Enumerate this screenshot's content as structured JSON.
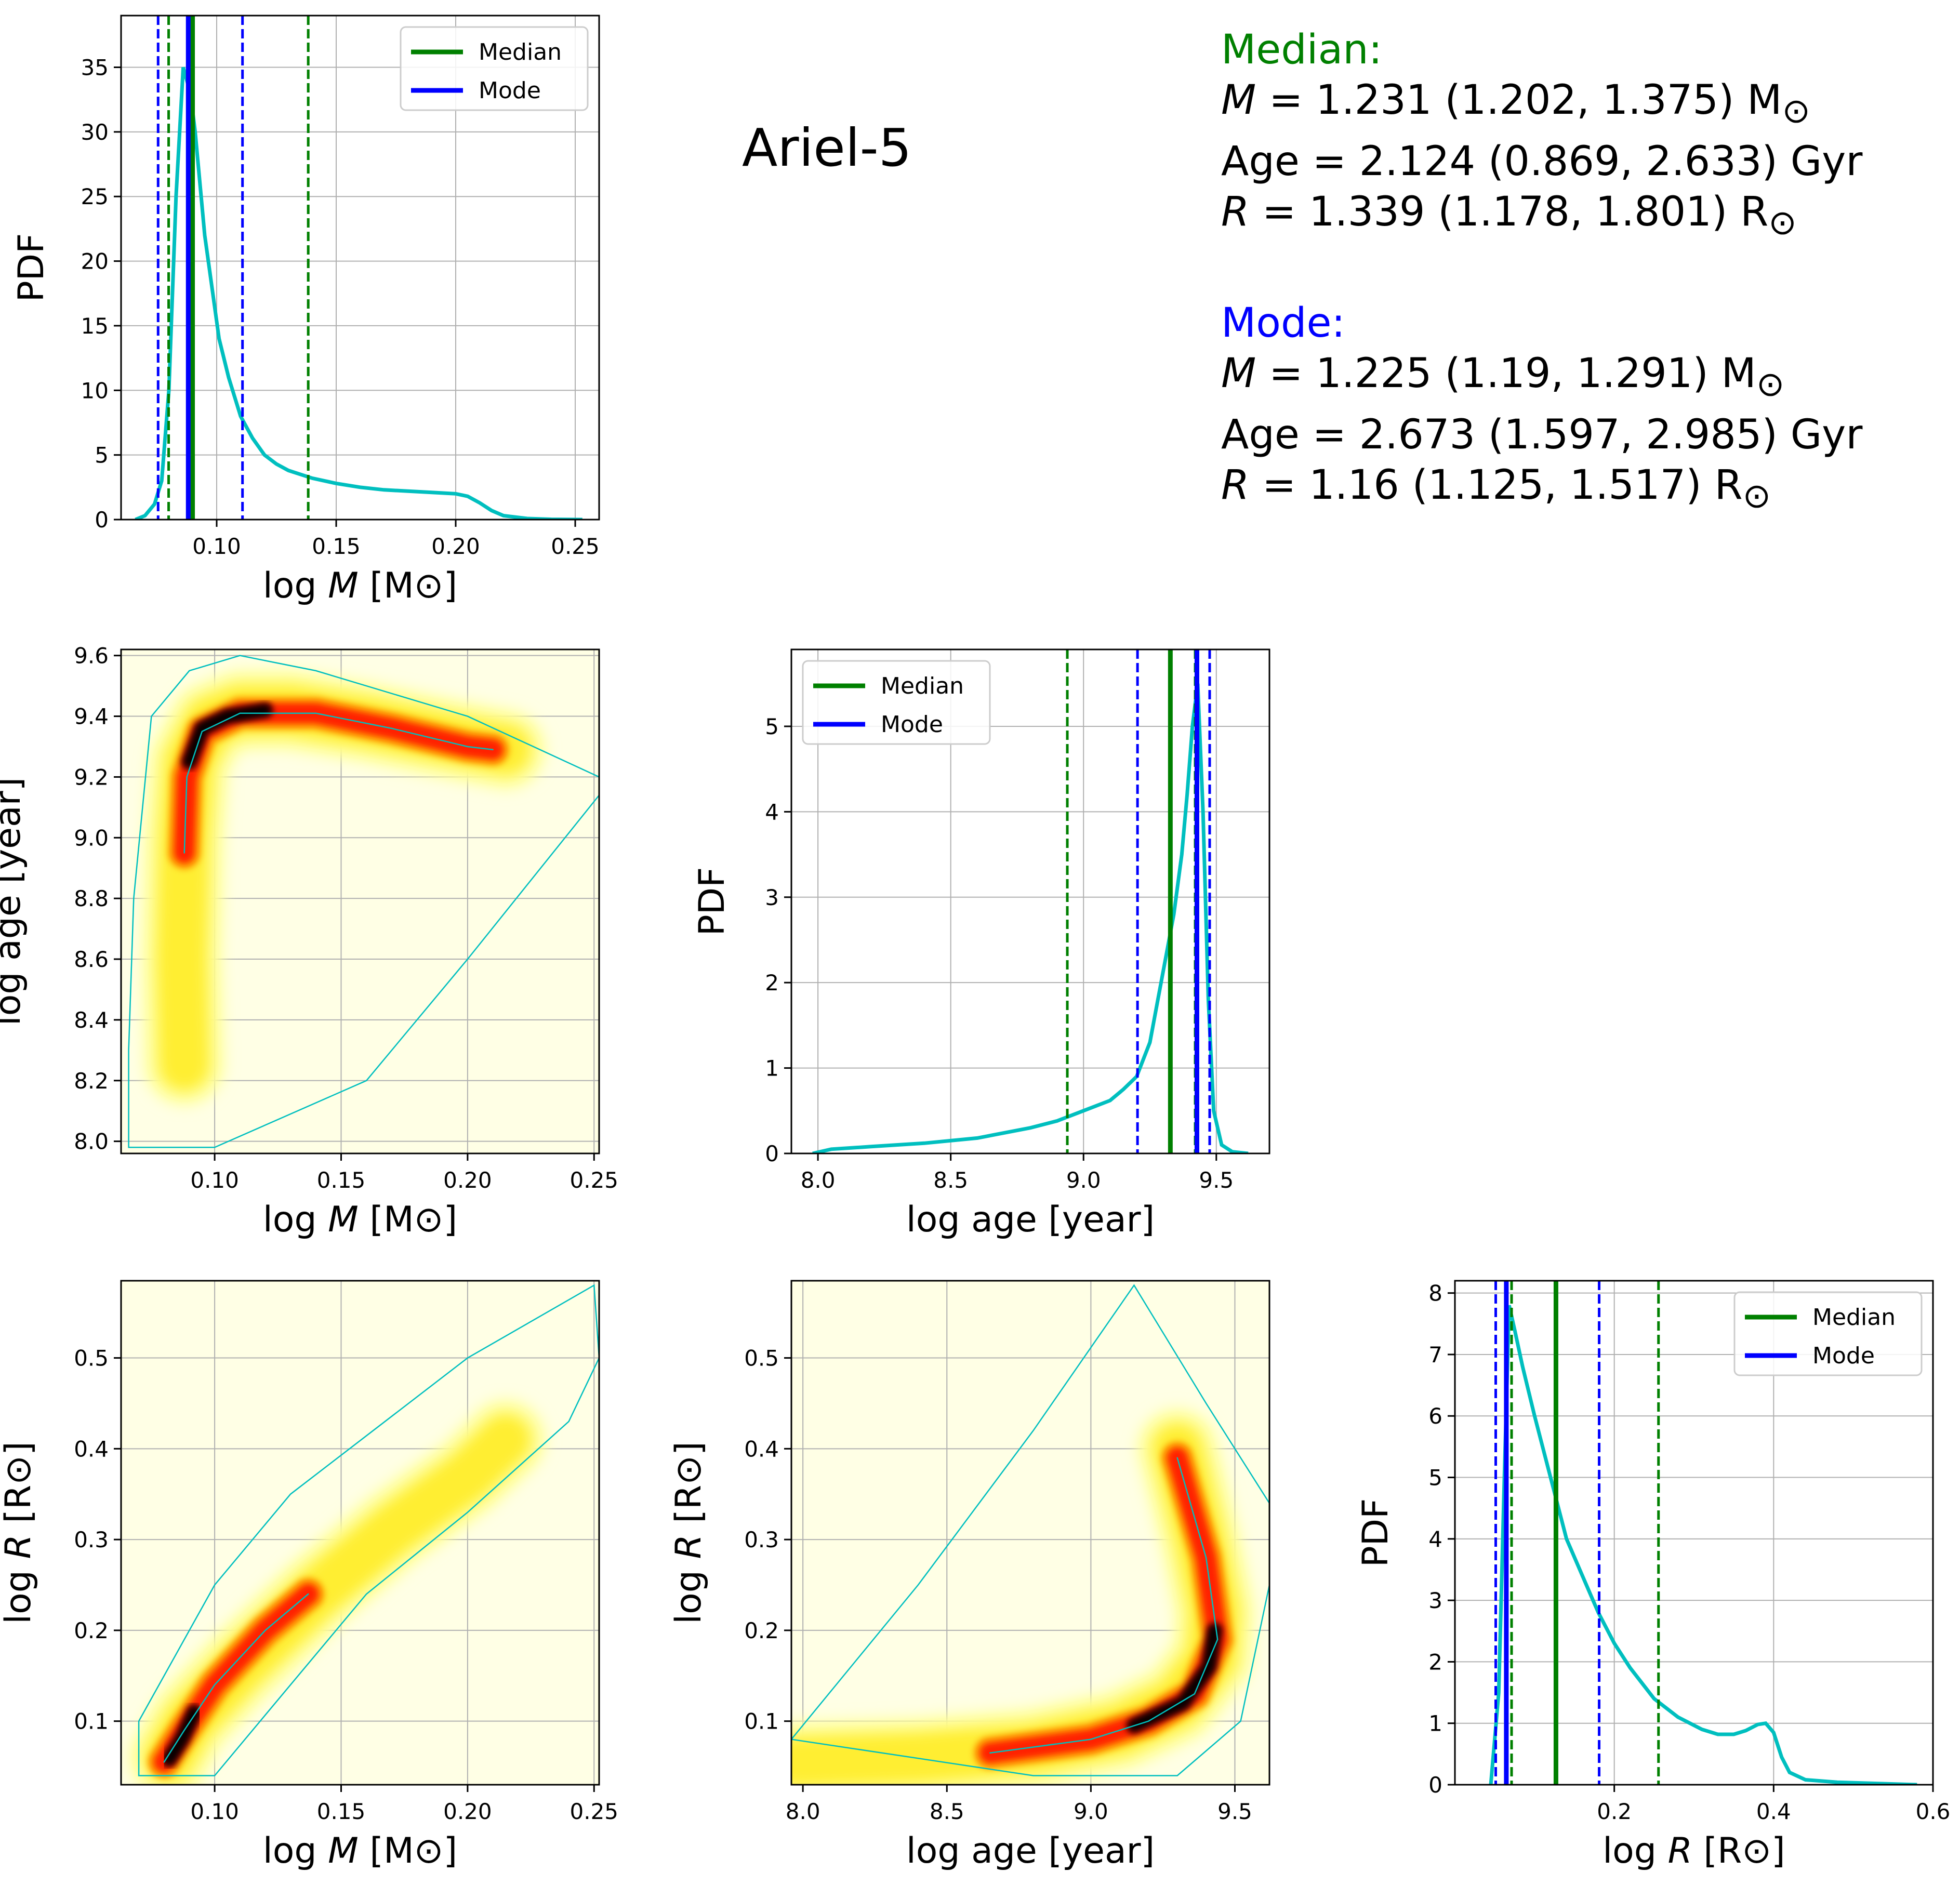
{
  "title": "Ariel-5",
  "summary": {
    "median": {
      "heading": "Median:",
      "color": "#008000",
      "mass": {
        "label": "M",
        "text": " = 1.231 (1.202, 1.375) M",
        "unit": "⊙"
      },
      "age": {
        "text": "Age = 2.124 (0.869, 2.633) Gyr"
      },
      "radius": {
        "label": "R",
        "text": " = 1.339 (1.178, 1.801) R",
        "unit": "⊙"
      }
    },
    "mode": {
      "heading": "Mode:",
      "color": "#0000ff",
      "mass": {
        "label": "M",
        "text": " = 1.225 (1.19, 1.291) M",
        "unit": "⊙"
      },
      "age": {
        "text": "Age = 2.673 (1.597, 2.985) Gyr"
      },
      "radius": {
        "label": "R",
        "text": " = 1.16 (1.125, 1.517) R",
        "unit": "⊙"
      }
    }
  },
  "colors": {
    "pdf_curve": "#00bfbf",
    "median": "#008000",
    "mode": "#0000ff",
    "grid": "#b0b0b0",
    "heat_background": "#ffffe5",
    "contour": "#00bfbf"
  },
  "chart_data": [
    {
      "id": "mass_pdf",
      "type": "line",
      "xlabel": "log M [M⊙]",
      "ylabel": "PDF",
      "xlim": [
        0.06,
        0.26
      ],
      "ylim": [
        0,
        39
      ],
      "xticks": [
        0.1,
        0.15,
        0.2,
        0.25
      ],
      "xtick_labels": [
        "0.10",
        "0.15",
        "0.20",
        "0.25"
      ],
      "yticks": [
        0,
        5,
        10,
        15,
        20,
        25,
        30,
        35
      ],
      "ytick_labels": [
        "0",
        "5",
        "10",
        "15",
        "20",
        "25",
        "30",
        "35"
      ],
      "grid": true,
      "legend": {
        "position": "top-right",
        "entries": [
          "Median",
          "Mode"
        ]
      },
      "series": [
        {
          "x": [
            0.066,
            0.07,
            0.074,
            0.077,
            0.08,
            0.083,
            0.086,
            0.089,
            0.091,
            0.093,
            0.095,
            0.098,
            0.101,
            0.105,
            0.11,
            0.115,
            0.12,
            0.125,
            0.13,
            0.14,
            0.15,
            0.16,
            0.17,
            0.18,
            0.19,
            0.2,
            0.205,
            0.21,
            0.215,
            0.22,
            0.23,
            0.24,
            0.253
          ],
          "y": [
            0,
            0.3,
            1.2,
            3,
            10,
            25,
            35,
            33,
            30,
            26,
            22,
            18,
            14,
            11,
            8,
            6.3,
            5,
            4.3,
            3.8,
            3.2,
            2.8,
            2.5,
            2.3,
            2.2,
            2.1,
            2.0,
            1.8,
            1.3,
            0.7,
            0.3,
            0.08,
            0.02,
            0
          ]
        }
      ],
      "median_lines": {
        "value": 0.0899,
        "ci": [
          0.0799,
          0.1383
        ]
      },
      "mode_lines": {
        "value": 0.0881,
        "ci": [
          0.0755,
          0.1108
        ]
      }
    },
    {
      "id": "mass_age_2d",
      "type": "heatmap",
      "xlabel": "log M [M⊙]",
      "ylabel": "log age [year]",
      "xlim": [
        0.063,
        0.252
      ],
      "ylim": [
        7.96,
        9.62
      ],
      "xticks": [
        0.1,
        0.15,
        0.2,
        0.25
      ],
      "xtick_labels": [
        "0.10",
        "0.15",
        "0.20",
        "0.25"
      ],
      "yticks": [
        8.0,
        8.2,
        8.4,
        8.6,
        8.8,
        9.0,
        9.2,
        9.4,
        9.6
      ],
      "ytick_labels": [
        "8.0",
        "8.2",
        "8.4",
        "8.6",
        "8.8",
        "9.0",
        "9.2",
        "9.4",
        "9.6"
      ],
      "grid": true
    },
    {
      "id": "age_pdf",
      "type": "line",
      "xlabel": "log age [year]",
      "ylabel": "PDF",
      "xlim": [
        7.9,
        9.7
      ],
      "ylim": [
        0,
        5.9
      ],
      "xticks": [
        8.0,
        8.5,
        9.0,
        9.5
      ],
      "xtick_labels": [
        "8.0",
        "8.5",
        "9.0",
        "9.5"
      ],
      "yticks": [
        0,
        1,
        2,
        3,
        4,
        5
      ],
      "ytick_labels": [
        "0",
        "1",
        "2",
        "3",
        "4",
        "5"
      ],
      "grid": true,
      "legend": {
        "position": "top-left",
        "entries": [
          "Median",
          "Mode"
        ]
      },
      "series": [
        {
          "x": [
            7.98,
            8.05,
            8.2,
            8.4,
            8.6,
            8.8,
            8.9,
            9.0,
            9.1,
            9.15,
            9.2,
            9.25,
            9.28,
            9.31,
            9.34,
            9.37,
            9.39,
            9.41,
            9.43,
            9.45,
            9.47,
            9.49,
            9.52,
            9.56,
            9.62
          ],
          "y": [
            0,
            0.05,
            0.08,
            0.12,
            0.18,
            0.3,
            0.38,
            0.5,
            0.62,
            0.75,
            0.9,
            1.3,
            1.8,
            2.3,
            2.8,
            3.5,
            4.2,
            5.0,
            5.5,
            4.0,
            1.8,
            0.5,
            0.1,
            0.02,
            0
          ]
        }
      ],
      "median_lines": {
        "value": 9.327,
        "ci": [
          8.939,
          9.4204
        ]
      },
      "mode_lines": {
        "value": 9.427,
        "ci": [
          9.2033,
          9.475
        ]
      }
    },
    {
      "id": "mass_radius_2d",
      "type": "heatmap",
      "xlabel": "log M [M⊙]",
      "ylabel": "log R [R⊙]",
      "xlim": [
        0.063,
        0.252
      ],
      "ylim": [
        0.03,
        0.585
      ],
      "xticks": [
        0.1,
        0.15,
        0.2,
        0.25
      ],
      "xtick_labels": [
        "0.10",
        "0.15",
        "0.20",
        "0.25"
      ],
      "yticks": [
        0.1,
        0.2,
        0.3,
        0.4,
        0.5
      ],
      "ytick_labels": [
        "0.1",
        "0.2",
        "0.3",
        "0.4",
        "0.5"
      ],
      "grid": true
    },
    {
      "id": "age_radius_2d",
      "type": "heatmap",
      "xlabel": "log age [year]",
      "ylabel": "log R [R⊙]",
      "xlim": [
        7.96,
        9.62
      ],
      "ylim": [
        0.03,
        0.585
      ],
      "xticks": [
        8.0,
        8.5,
        9.0,
        9.5
      ],
      "xtick_labels": [
        "8.0",
        "8.5",
        "9.0",
        "9.5"
      ],
      "yticks": [
        0.1,
        0.2,
        0.3,
        0.4,
        0.5
      ],
      "ytick_labels": [
        "0.1",
        "0.2",
        "0.3",
        "0.4",
        "0.5"
      ],
      "grid": true
    },
    {
      "id": "radius_pdf",
      "type": "line",
      "xlabel": "log R [R⊙]",
      "ylabel": "PDF",
      "xlim": [
        0.0,
        0.6
      ],
      "ylim": [
        0,
        8.2
      ],
      "xticks": [
        0.2,
        0.4,
        0.6
      ],
      "xtick_labels": [
        "0.2",
        "0.4",
        "0.6"
      ],
      "yticks": [
        0,
        1,
        2,
        3,
        4,
        5,
        6,
        7,
        8
      ],
      "ytick_labels": [
        "0",
        "1",
        "2",
        "3",
        "4",
        "5",
        "6",
        "7",
        "8"
      ],
      "grid": true,
      "legend": {
        "position": "top-right",
        "entries": [
          "Median",
          "Mode"
        ]
      },
      "series": [
        {
          "x": [
            0.045,
            0.055,
            0.062,
            0.068,
            0.075,
            0.085,
            0.1,
            0.12,
            0.14,
            0.16,
            0.18,
            0.2,
            0.22,
            0.25,
            0.28,
            0.31,
            0.33,
            0.35,
            0.365,
            0.38,
            0.39,
            0.4,
            0.41,
            0.42,
            0.44,
            0.48,
            0.53,
            0.58
          ],
          "y": [
            0,
            1.5,
            5.0,
            7.8,
            7.4,
            6.8,
            6.0,
            5.0,
            4.0,
            3.4,
            2.8,
            2.3,
            1.9,
            1.4,
            1.1,
            0.9,
            0.82,
            0.82,
            0.88,
            0.98,
            1.0,
            0.85,
            0.45,
            0.2,
            0.08,
            0.04,
            0.02,
            0
          ]
        }
      ],
      "median_lines": {
        "value": 0.1268,
        "ci": [
          0.0711,
          0.2555
        ]
      },
      "mode_lines": {
        "value": 0.0645,
        "ci": [
          0.0512,
          0.181
        ]
      }
    }
  ]
}
